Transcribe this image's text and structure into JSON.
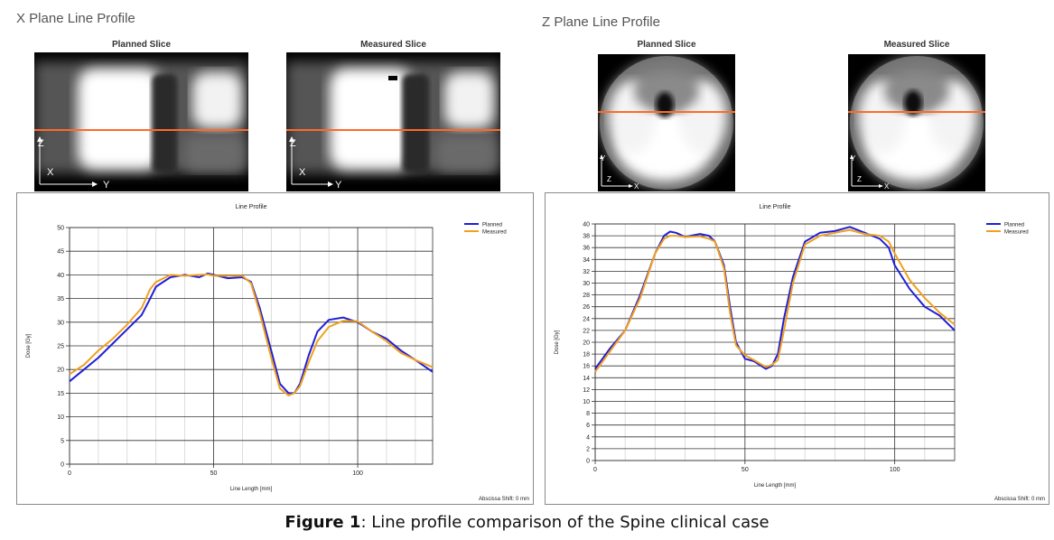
{
  "caption": {
    "label": "Figure 1",
    "text": ": Line profile comparison of the Spine clinical case"
  },
  "colors": {
    "planned": "#1f1fd6",
    "measured": "#f0a020",
    "profile_line": "#ff6a2a"
  },
  "panels": [
    {
      "title": "X Plane Line Profile",
      "slices": [
        {
          "title": "Planned Slice",
          "axes": [
            "Z",
            "X",
            "Y"
          ]
        },
        {
          "title": "Measured Slice",
          "axes": [
            "Z",
            "X",
            "Y"
          ]
        }
      ]
    },
    {
      "title": "Z Plane Line Profile",
      "slices": [
        {
          "title": "Planned Slice",
          "axes": [
            "Y",
            "Z",
            "X"
          ]
        },
        {
          "title": "Measured Slice",
          "axes": [
            "Y",
            "Z",
            "X"
          ]
        }
      ]
    }
  ],
  "chart_data": [
    {
      "type": "line",
      "title": "Line Profile",
      "xlabel": "Line Length [mm]",
      "ylabel": "Dose [Gy]",
      "xlim": [
        0,
        126
      ],
      "ylim": [
        0,
        50
      ],
      "xticks": [
        0,
        50,
        100
      ],
      "yticks": [
        0,
        5,
        10,
        15,
        20,
        25,
        30,
        35,
        40,
        45,
        50
      ],
      "grid": true,
      "legend": "top-right",
      "footnote": "Abscissa Shift: 0 mm",
      "series": [
        {
          "name": "Planned",
          "x": [
            0,
            5,
            10,
            15,
            20,
            25,
            28,
            30,
            35,
            40,
            45,
            48,
            50,
            55,
            60,
            63,
            66,
            70,
            73,
            76,
            78,
            80,
            83,
            86,
            90,
            95,
            100,
            105,
            110,
            115,
            120,
            126
          ],
          "y": [
            17.5,
            20,
            22.5,
            25.5,
            28.5,
            31.5,
            35,
            37.5,
            39.5,
            40,
            39.5,
            40.3,
            40,
            39.3,
            39.5,
            38.5,
            33,
            24,
            17,
            15,
            15,
            17,
            23,
            28,
            30.5,
            31,
            30,
            28,
            26.5,
            24,
            22,
            19.5
          ]
        },
        {
          "name": "Measured",
          "x": [
            0,
            5,
            10,
            15,
            20,
            25,
            28,
            30,
            35,
            40,
            45,
            48,
            50,
            55,
            60,
            63,
            66,
            70,
            73,
            76,
            78,
            80,
            83,
            86,
            90,
            95,
            100,
            105,
            110,
            115,
            120,
            126
          ],
          "y": [
            19,
            21,
            24,
            26.5,
            29.5,
            33,
            37,
            38.5,
            40,
            39.8,
            40,
            40.1,
            39.8,
            39.8,
            39.8,
            38.2,
            32,
            22.5,
            16,
            14.5,
            15,
            16.5,
            21.5,
            26,
            29,
            30.3,
            30.2,
            28,
            26,
            23.5,
            22,
            20.5
          ]
        }
      ]
    },
    {
      "type": "line",
      "title": "Line Profile",
      "xlabel": "Line Length [mm]",
      "ylabel": "Dose [Gy]",
      "xlim": [
        0,
        120
      ],
      "ylim": [
        0,
        40
      ],
      "xticks": [
        0,
        50,
        100
      ],
      "yticks": [
        0,
        2,
        4,
        6,
        8,
        10,
        12,
        14,
        16,
        18,
        20,
        22,
        24,
        26,
        28,
        30,
        32,
        34,
        36,
        38,
        40
      ],
      "grid": true,
      "legend": "top-right",
      "footnote": "Abscissa Shift: 0 mm",
      "series": [
        {
          "name": "Planned",
          "x": [
            0,
            5,
            10,
            15,
            20,
            23,
            25,
            27,
            30,
            35,
            38,
            40,
            43,
            45,
            47,
            50,
            53,
            57,
            59,
            61,
            63,
            66,
            70,
            75,
            80,
            85,
            90,
            95,
            98,
            100,
            105,
            110,
            115,
            120
          ],
          "y": [
            15.5,
            19,
            22,
            28,
            35,
            38,
            38.7,
            38.5,
            37.8,
            38.3,
            38,
            37,
            33,
            26,
            20,
            17.2,
            16.8,
            15.5,
            16,
            18,
            24,
            31,
            37,
            38.5,
            38.8,
            39.5,
            38.5,
            37.5,
            36,
            33,
            29,
            26,
            24.5,
            22
          ]
        },
        {
          "name": "Measured",
          "x": [
            0,
            5,
            10,
            15,
            20,
            23,
            25,
            27,
            30,
            35,
            38,
            40,
            43,
            45,
            47,
            50,
            53,
            57,
            59,
            61,
            63,
            66,
            70,
            75,
            80,
            85,
            90,
            95,
            98,
            100,
            105,
            110,
            115,
            120
          ],
          "y": [
            15,
            18.5,
            22,
            27.5,
            35,
            37.5,
            38,
            38,
            37.8,
            37.9,
            37.5,
            37,
            32.5,
            25,
            19.5,
            17.8,
            17,
            15.8,
            16.2,
            17,
            22,
            30,
            36.5,
            38,
            38.5,
            39,
            38.3,
            38,
            37,
            35,
            30.5,
            27.5,
            25,
            23
          ]
        }
      ]
    }
  ]
}
